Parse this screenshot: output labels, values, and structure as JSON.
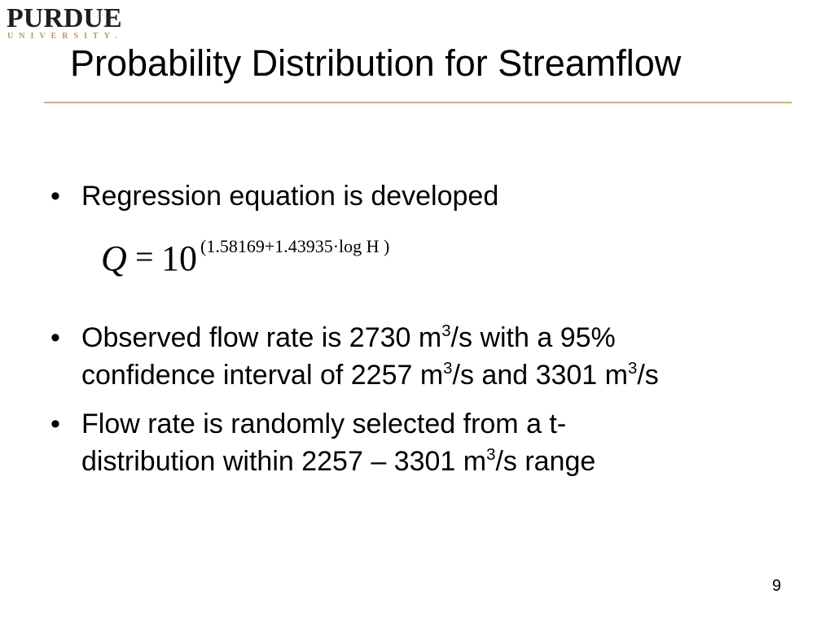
{
  "logo": {
    "main": "PURDUE",
    "sub": "UNIVERSITY."
  },
  "slide": {
    "title": "Probability Distribution for Streamflow",
    "bullets": {
      "b1": "Regression equation is developed",
      "b2_line1_pre": "Observed flow rate is 2730 m",
      "b2_line1_sup": "3",
      "b2_line1_post": "/s with a 95%",
      "b2_line2_pre": "confidence interval of 2257 m",
      "b2_line2_sup1": "3",
      "b2_line2_mid": "/s and 3301 m",
      "b2_line2_sup2": "3",
      "b2_line2_post": "/s",
      "b3_line1": "Flow rate is randomly selected from a t-",
      "b3_line2_pre": "distribution within 2257 – 3301 m",
      "b3_line2_sup": "3",
      "b3_line2_post": "/s range"
    },
    "bullet_glyph": "•",
    "equation": {
      "lhs": "Q",
      "equals": "=",
      "base": "10",
      "exponent": "(1.58169+1.43935·log H )"
    },
    "page_number": "9"
  },
  "colors": {
    "accent_rule": "#c9b574",
    "logo_gold": "#b39b5a"
  }
}
